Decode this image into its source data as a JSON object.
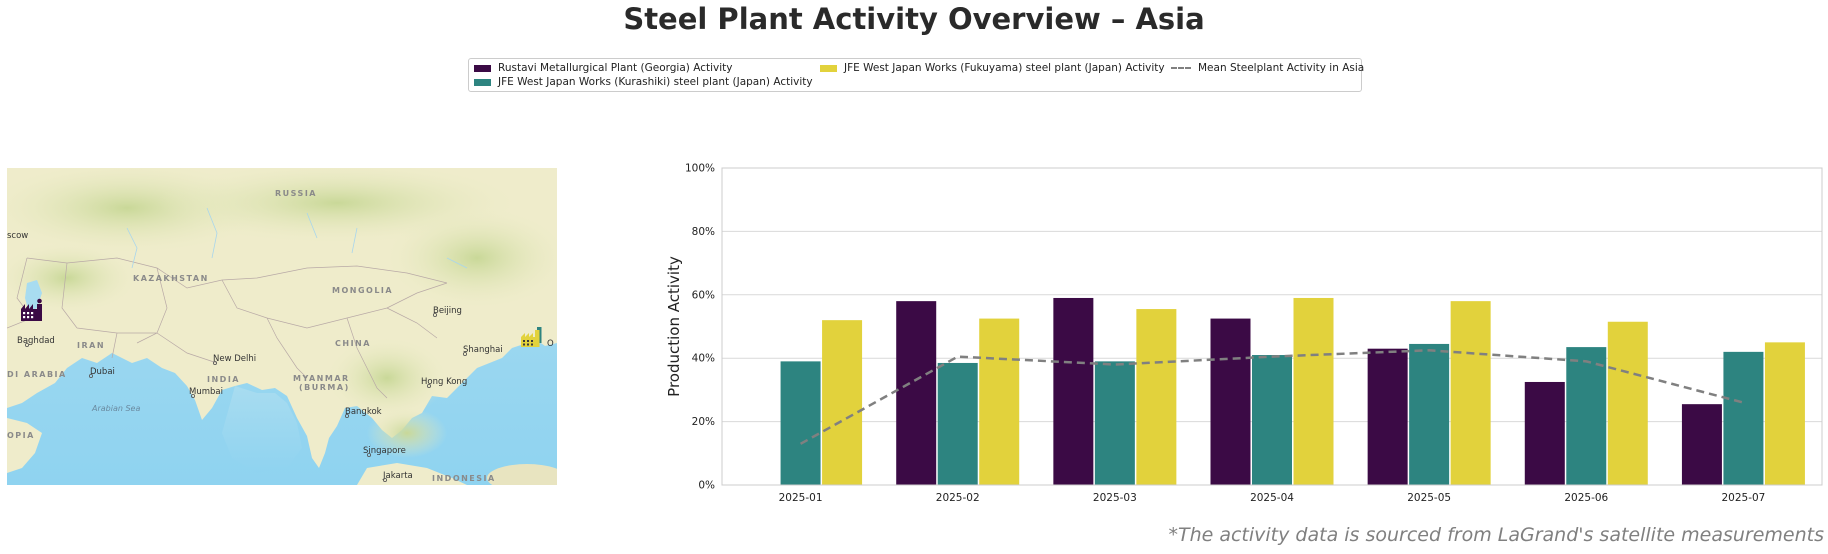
{
  "title": "Steel Plant Activity Overview – Asia",
  "footnote": "*The activity data is sourced from LaGrand's satellite measurements",
  "map": {
    "labels": {
      "russia": "RUSSIA",
      "kazakhstan": "KAZAKHSTAN",
      "mongolia": "MONGOLIA",
      "china": "CHINA",
      "iran": "IRAN",
      "india": "INDIA",
      "myanmar": "MYANMAR",
      "burma": "(BURMA)",
      "saudi": "DI ARABIA",
      "opia": "OPIA",
      "indonesia": "INDONESIA",
      "arabian_sea": "Arabian Sea",
      "moscow": "scow",
      "baghdad": "Baghdad",
      "dubai": "Dubai",
      "new_delhi": "New Delhi",
      "mumbai": "Mumbai",
      "beijing": "Beijing",
      "shanghai": "Shanghai",
      "osaka": "O",
      "hong_kong": "Hong Kong",
      "bangkok": "Bangkok",
      "singapore": "Singapore",
      "jakarta": "Jakarta"
    },
    "marker_colors": [
      "#3b0a45",
      "#e2d23c"
    ]
  },
  "chart_data": {
    "type": "bar",
    "categories": [
      "2025-01",
      "2025-02",
      "2025-03",
      "2025-04",
      "2025-05",
      "2025-06",
      "2025-07"
    ],
    "series": [
      {
        "name": "Rustavi Metallurgical Plant (Georgia) Activity",
        "color": "#3b0a45",
        "values": [
          null,
          58,
          59,
          52.5,
          43,
          32.5,
          25.5
        ]
      },
      {
        "name": "JFE West Japan Works (Kurashiki) steel plant (Japan) Activity",
        "color": "#2d8480",
        "values": [
          39,
          38.5,
          39,
          41,
          44.5,
          43.5,
          42
        ]
      },
      {
        "name": "JFE West Japan Works (Fukuyama) steel plant (Japan) Activity",
        "color": "#e2d23c",
        "values": [
          52,
          52.5,
          55.5,
          59,
          58,
          51.5,
          45
        ]
      }
    ],
    "line": {
      "name": "Mean Steelplant Activity in Asia",
      "color": "#808080",
      "values": [
        13,
        40.5,
        38,
        40.5,
        42.5,
        39,
        26
      ]
    },
    "ylabel": "Production Activity",
    "ylim": [
      0,
      100
    ],
    "yticks": [
      "0%",
      "20%",
      "40%",
      "60%",
      "80%",
      "100%"
    ],
    "grid": true,
    "legend_position": "top-center"
  }
}
